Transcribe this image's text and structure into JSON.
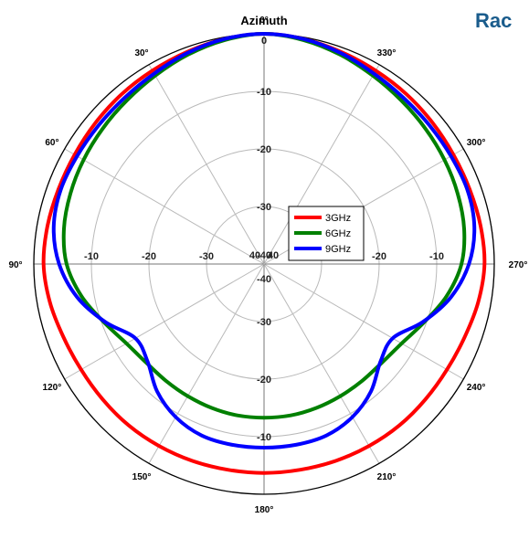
{
  "page_title": "Rac",
  "colors": {
    "title": "#1a5c8c",
    "grid": "#b9b9b9",
    "axis": "#000000"
  },
  "chart_data": {
    "type": "polar-line",
    "title": "Azimuth",
    "angle_direction": "counter-clockwise",
    "zero_angle_position": "top",
    "radial_range": [
      -40,
      0
    ],
    "radial_ticks": [
      -40,
      -30,
      -20,
      -10,
      0
    ],
    "angle_labels": [
      "0°",
      "30°",
      "60°",
      "90°",
      "120°",
      "150°",
      "180°",
      "210°",
      "240°",
      "270°",
      "300°",
      "330°"
    ],
    "grid": true,
    "legend": {
      "placement": "center-right",
      "entries": [
        "3GHz",
        "6GHz",
        "9GHz"
      ]
    },
    "series": [
      {
        "name": "3GHz",
        "color": "#ff0000",
        "theta": [
          0,
          10,
          20,
          30,
          40,
          50,
          60,
          70,
          80,
          90,
          100,
          110,
          120,
          130,
          140,
          150,
          160,
          170,
          180,
          190,
          200,
          210,
          220,
          230,
          240,
          250,
          260,
          270,
          280,
          290,
          300,
          310,
          320,
          330,
          340,
          350,
          360
        ],
        "r": [
          0,
          -0.3,
          -0.8,
          -1.2,
          -1.5,
          -1.8,
          -2.0,
          -2.0,
          -1.8,
          -1.7,
          -2.2,
          -2.9,
          -3.3,
          -3.4,
          -3.4,
          -3.5,
          -3.6,
          -3.7,
          -3.7,
          -3.7,
          -3.6,
          -3.5,
          -3.4,
          -3.4,
          -3.3,
          -2.9,
          -2.2,
          -1.7,
          -1.8,
          -2.0,
          -2.0,
          -1.8,
          -1.5,
          -1.2,
          -0.8,
          -0.3,
          0
        ]
      },
      {
        "name": "6GHz",
        "color": "#008000",
        "theta": [
          0,
          10,
          20,
          30,
          40,
          50,
          60,
          70,
          80,
          90,
          100,
          110,
          120,
          130,
          140,
          150,
          160,
          170,
          180,
          190,
          200,
          210,
          220,
          230,
          240,
          250,
          260,
          270,
          280,
          290,
          300,
          310,
          320,
          330,
          340,
          350,
          360
        ],
        "r": [
          0,
          -0.5,
          -1.3,
          -2.2,
          -2.9,
          -3.4,
          -3.8,
          -4.2,
          -4.7,
          -5.7,
          -7.8,
          -10.4,
          -12.4,
          -13.3,
          -13.5,
          -13.5,
          -13.4,
          -13.3,
          -13.3,
          -13.3,
          -13.4,
          -13.5,
          -13.5,
          -13.3,
          -12.4,
          -10.4,
          -7.8,
          -5.7,
          -4.7,
          -4.2,
          -3.8,
          -3.4,
          -2.9,
          -2.2,
          -1.3,
          -0.5,
          0
        ]
      },
      {
        "name": "9GHz",
        "color": "#0000ff",
        "theta": [
          0,
          10,
          20,
          30,
          40,
          50,
          60,
          70,
          80,
          90,
          100,
          110,
          120,
          130,
          140,
          150,
          160,
          170,
          180,
          190,
          200,
          210,
          220,
          230,
          240,
          250,
          260,
          270,
          280,
          290,
          300,
          310,
          320,
          330,
          340,
          350,
          360
        ],
        "r": [
          0,
          -0.3,
          -1.0,
          -1.8,
          -2.3,
          -2.5,
          -2.5,
          -2.4,
          -2.9,
          -4.4,
          -7.0,
          -10.6,
          -14.2,
          -13.6,
          -11.1,
          -9.3,
          -8.3,
          -8.1,
          -8.1,
          -8.1,
          -8.3,
          -9.3,
          -11.1,
          -13.6,
          -14.2,
          -10.6,
          -7.0,
          -4.4,
          -2.9,
          -2.4,
          -2.5,
          -2.5,
          -2.3,
          -1.8,
          -1.0,
          -0.3,
          0
        ]
      }
    ]
  }
}
